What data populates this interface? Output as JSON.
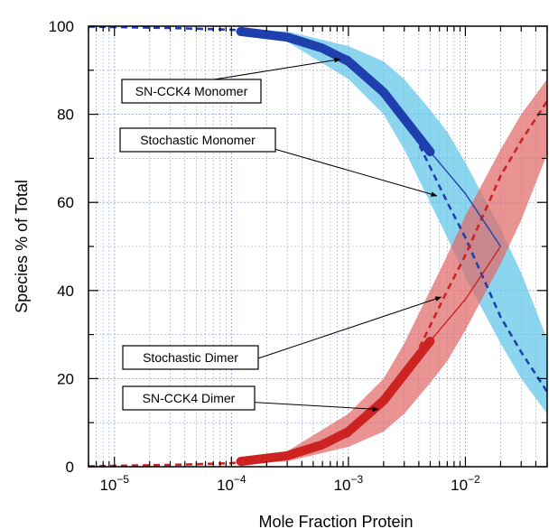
{
  "chart_data": {
    "type": "line",
    "title": "",
    "xlabel": "Mole Fraction Protein",
    "ylabel": "Species % of Total",
    "x_scale": "log",
    "xlim": [
      6e-06,
      0.05
    ],
    "ylim": [
      0,
      100
    ],
    "grid": true,
    "x_ticks": [
      {
        "value": 1e-05,
        "base": "10",
        "exp": "-5"
      },
      {
        "value": 0.0001,
        "base": "10",
        "exp": "-4"
      },
      {
        "value": 0.001,
        "base": "10",
        "exp": "-3"
      },
      {
        "value": 0.01,
        "base": "10",
        "exp": "-2"
      }
    ],
    "y_ticks": [
      "0",
      "20",
      "40",
      "60",
      "80",
      "100"
    ],
    "colors": {
      "monomer": "#1f3fae",
      "monomer_band": "#5ec6e8",
      "dimer": "#cc2222",
      "dimer_band": "#e06a6a",
      "grid": "#9aa7d8"
    },
    "series": [
      {
        "key": "monomer_dashed",
        "style": "dashed",
        "color": "#1f3fae",
        "x": [
          6e-06,
          1e-05,
          3e-05,
          0.0001,
          0.0003,
          0.001,
          0.002,
          0.003,
          0.005,
          0.007,
          0.01,
          0.02,
          0.03,
          0.05
        ],
        "y": [
          99.9,
          99.8,
          99.6,
          99.2,
          98,
          93,
          86,
          80,
          68,
          60,
          52,
          34,
          26,
          17
        ]
      },
      {
        "key": "dimer_dashed",
        "style": "dashed",
        "color": "#cc2222",
        "x": [
          6e-06,
          1e-05,
          3e-05,
          0.0001,
          0.0003,
          0.001,
          0.002,
          0.003,
          0.005,
          0.007,
          0.01,
          0.02,
          0.03,
          0.05
        ],
        "y": [
          0.1,
          0.2,
          0.4,
          0.8,
          2,
          7,
          14,
          20,
          32,
          40,
          48,
          66,
          74,
          83
        ]
      },
      {
        "key": "monomer_thin",
        "style": "solid",
        "color": "#1f3fae",
        "x": [
          0.005,
          0.01,
          0.02
        ],
        "y": [
          71.5,
          62,
          50
        ]
      },
      {
        "key": "dimer_thin",
        "style": "solid",
        "color": "#cc2222",
        "x": [
          0.005,
          0.01,
          0.02
        ],
        "y": [
          28.5,
          38,
          50
        ]
      },
      {
        "key": "monomer_thick",
        "style": "thick",
        "color": "#1f3fae",
        "x": [
          0.00012,
          0.0003,
          0.0006,
          0.001,
          0.002,
          0.003,
          0.005
        ],
        "y": [
          98.8,
          97.5,
          95,
          92,
          85,
          79,
          71.5
        ]
      },
      {
        "key": "dimer_thick",
        "style": "thick",
        "color": "#cc2222",
        "x": [
          0.00012,
          0.0003,
          0.0006,
          0.001,
          0.002,
          0.003,
          0.005
        ],
        "y": [
          1.2,
          2.5,
          5,
          8,
          15,
          21,
          28.5
        ]
      }
    ],
    "bands": [
      {
        "key": "monomer_band",
        "color": "#5ec6e8",
        "x": [
          0.00012,
          0.0003,
          0.001,
          0.002,
          0.003,
          0.005,
          0.007,
          0.01,
          0.02,
          0.03,
          0.05
        ],
        "upper": [
          99.2,
          98.8,
          95.5,
          92,
          88,
          81,
          76,
          69,
          54,
          44,
          29
        ],
        "lower": [
          98.2,
          96.5,
          88,
          80,
          72,
          60,
          52,
          43,
          28,
          20,
          12
        ]
      },
      {
        "key": "dimer_band",
        "color": "#e06a6a",
        "x": [
          0.00012,
          0.0003,
          0.001,
          0.002,
          0.003,
          0.005,
          0.007,
          0.01,
          0.02,
          0.03,
          0.05
        ],
        "upper": [
          1.8,
          3.5,
          12,
          20,
          28,
          40,
          48,
          57,
          72,
          80,
          88
        ],
        "lower": [
          0.8,
          1.2,
          4.5,
          8,
          12,
          19,
          24,
          31,
          46,
          56,
          71
        ]
      }
    ],
    "annotations": [
      {
        "key": "sn-monomer",
        "text": "SN-CCK4 Monomer",
        "target_x": 0.00085,
        "target_y": 92.5
      },
      {
        "key": "stoch-monomer",
        "text": "Stochastic Monomer",
        "target_x": 0.0057,
        "target_y": 61.5
      },
      {
        "key": "stoch-dimer",
        "text": "Stochastic Dimer",
        "target_x": 0.0062,
        "target_y": 38.5
      },
      {
        "key": "sn-dimer",
        "text": "SN-CCK4 Dimer",
        "target_x": 0.0018,
        "target_y": 13
      }
    ]
  }
}
